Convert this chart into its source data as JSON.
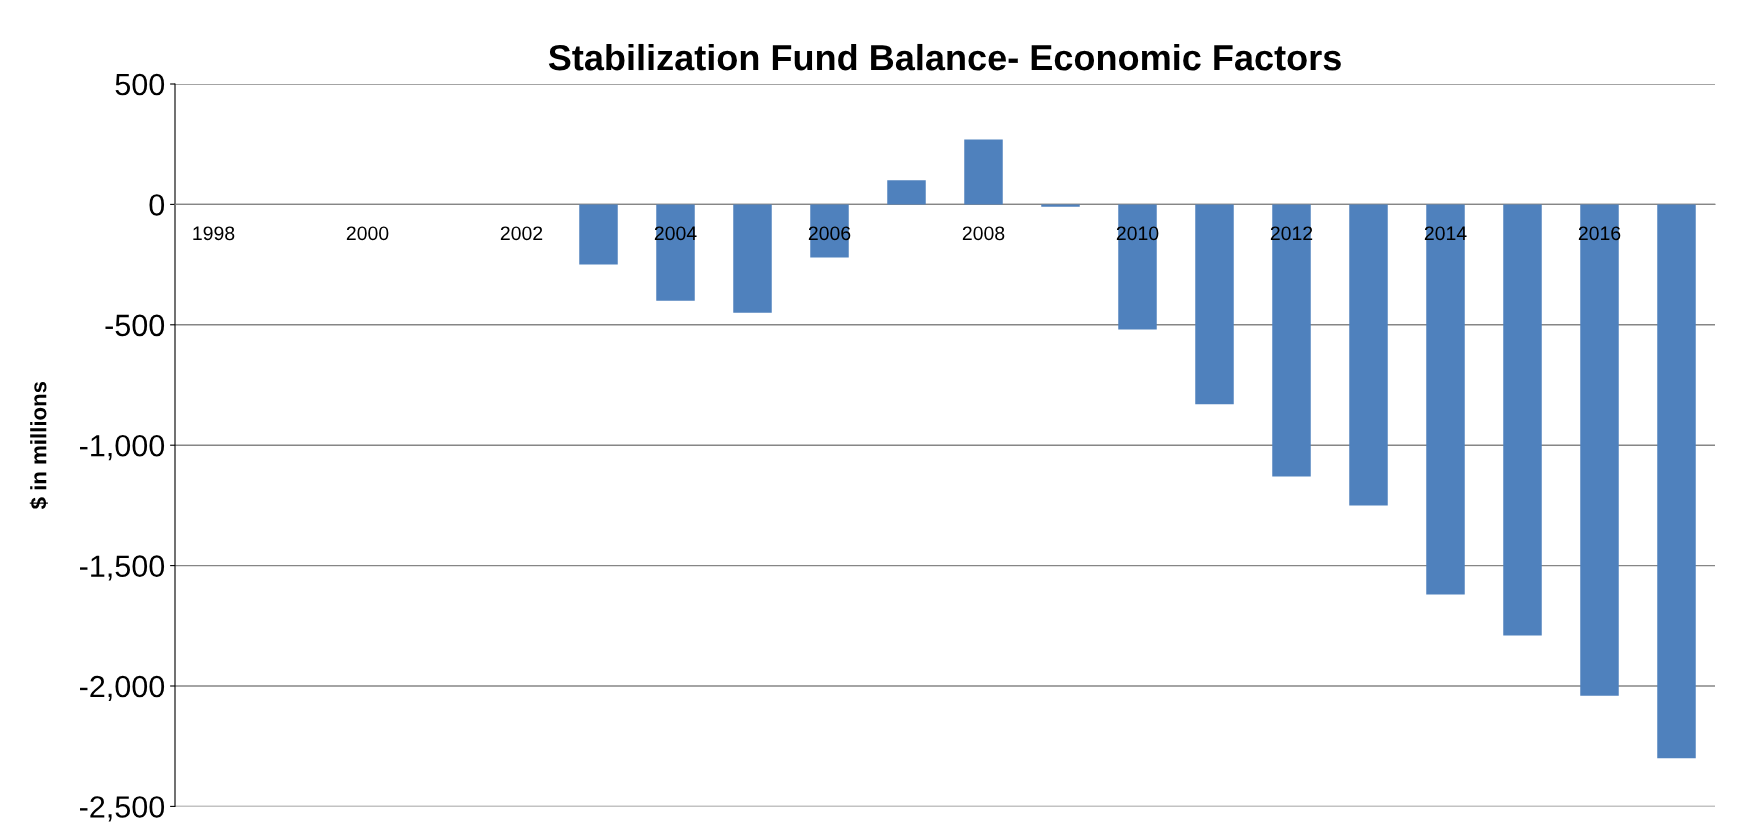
{
  "chart_data": {
    "type": "bar",
    "title": "Stabilization Fund Balance- Economic Factors",
    "ylabel": "$ in millions",
    "categories": [
      "1998",
      null,
      "2000",
      null,
      "2002",
      null,
      "2004",
      null,
      "2006",
      null,
      "2008",
      null,
      "2010",
      null,
      "2012",
      null,
      "2014",
      null,
      "2016",
      null
    ],
    "values": [
      null,
      null,
      null,
      null,
      null,
      -250,
      -400,
      -450,
      -220,
      100,
      270,
      -10,
      -520,
      -830,
      -1130,
      -1250,
      -1620,
      -1790,
      -2040,
      -2300
    ],
    "color": "#4f81bd",
    "ylim": [
      -2500,
      500
    ],
    "yticks": [
      {
        "value": -2500,
        "label": "-2,500"
      },
      {
        "value": -2000,
        "label": "-2,000"
      },
      {
        "value": -1500,
        "label": "-1,500"
      },
      {
        "value": -1000,
        "label": "-1,000"
      },
      {
        "value": -500,
        "label": "-500"
      },
      0,
      500
    ],
    "grid": "y",
    "legend": false
  }
}
